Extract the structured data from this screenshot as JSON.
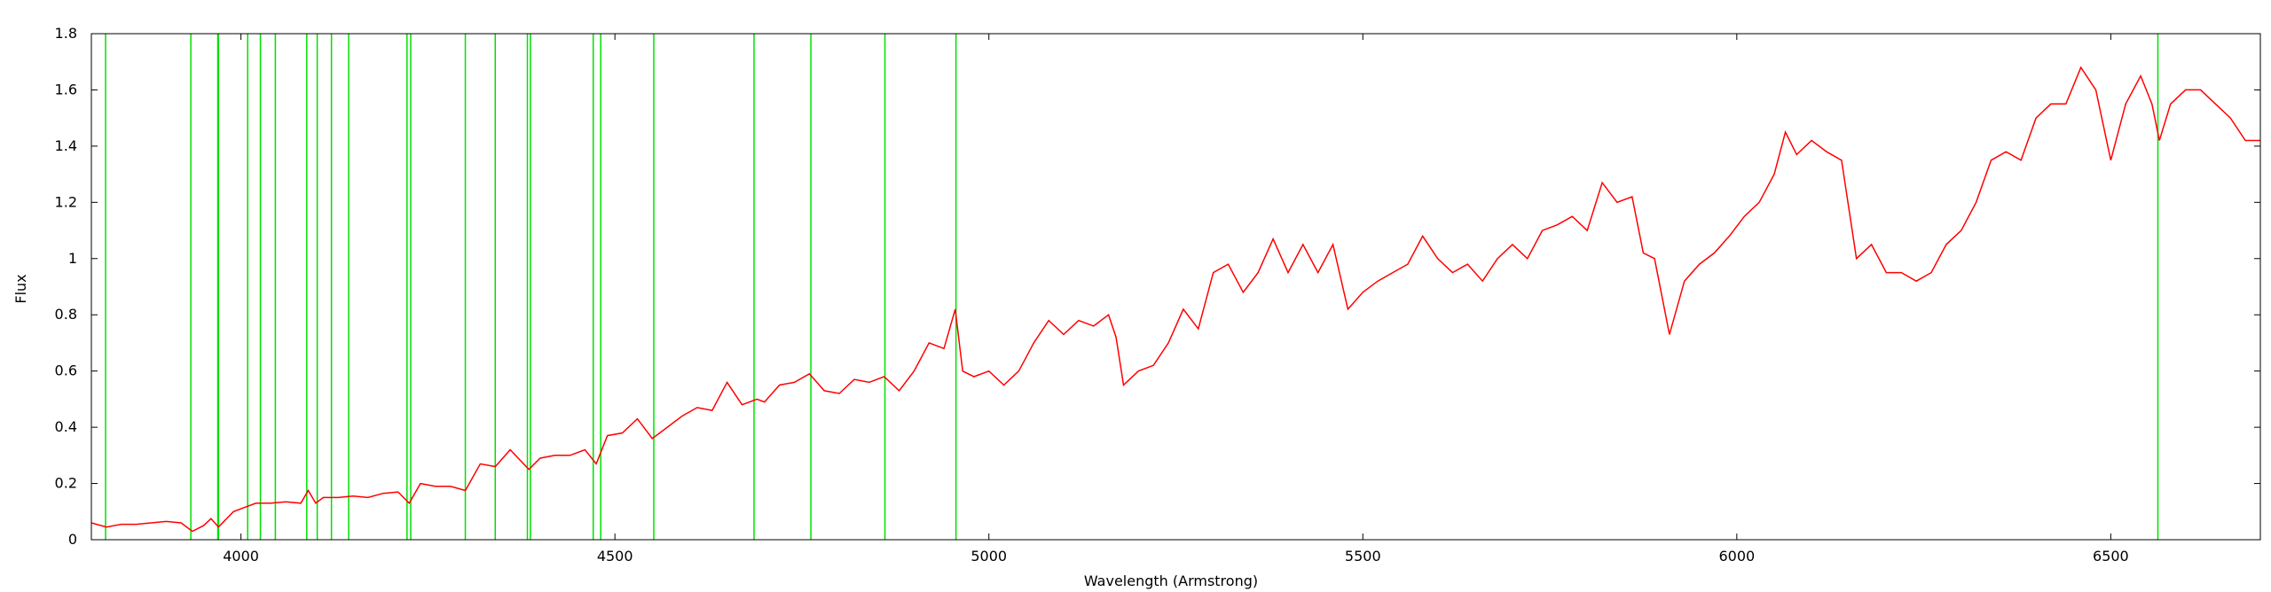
{
  "chart_data": {
    "type": "line",
    "xlabel": "Wavelength (Armstrong)",
    "ylabel": "Flux",
    "xlim": [
      3800,
      6700
    ],
    "ylim": [
      0,
      1.8
    ],
    "grid": false,
    "x_ticks": [
      4000,
      4500,
      5000,
      5500,
      6000,
      6500
    ],
    "y_ticks": [
      0,
      0.2,
      0.4,
      0.6,
      0.8,
      1,
      1.2,
      1.4,
      1.6,
      1.8
    ],
    "x_tick_labels": [
      "4000",
      "4500",
      "5000",
      "5500",
      "6000",
      "6500"
    ],
    "y_tick_labels": [
      "0",
      "0.2",
      "0.4",
      "0.6",
      "0.8",
      "1",
      "1.2",
      "1.4",
      "1.6",
      "1.8"
    ],
    "line_markers": {
      "color": "#00e000",
      "positions": [
        3819,
        3933,
        3969,
        3970,
        4009,
        4026,
        4046,
        4088,
        4102,
        4121,
        4144,
        4222,
        4227,
        4300,
        4340,
        4383,
        4387,
        4471,
        4481,
        4552,
        4686,
        4762,
        4861,
        4956,
        6563
      ]
    },
    "series": [
      {
        "color": "#ff0000",
        "x": [
          3800,
          3820,
          3840,
          3860,
          3880,
          3900,
          3920,
          3935,
          3950,
          3960,
          3970,
          3990,
          4000,
          4020,
          4040,
          4060,
          4080,
          4090,
          4100,
          4110,
          4130,
          4150,
          4170,
          4190,
          4210,
          4225,
          4240,
          4260,
          4280,
          4300,
          4320,
          4340,
          4360,
          4385,
          4400,
          4420,
          4440,
          4460,
          4475,
          4490,
          4510,
          4530,
          4550,
          4570,
          4590,
          4610,
          4630,
          4650,
          4670,
          4690,
          4700,
          4720,
          4740,
          4760,
          4780,
          4800,
          4820,
          4840,
          4860,
          4880,
          4900,
          4920,
          4940,
          4955,
          4965,
          4980,
          5000,
          5020,
          5040,
          5050,
          5060,
          5080,
          5100,
          5120,
          5140,
          5160,
          5170,
          5180,
          5200,
          5220,
          5240,
          5260,
          5280,
          5300,
          5320,
          5340,
          5360,
          5380,
          5400,
          5420,
          5440,
          5460,
          5480,
          5500,
          5520,
          5540,
          5560,
          5580,
          5600,
          5620,
          5640,
          5660,
          5680,
          5700,
          5720,
          5740,
          5760,
          5780,
          5800,
          5820,
          5840,
          5860,
          5875,
          5890,
          5910,
          5930,
          5950,
          5970,
          5990,
          6010,
          6030,
          6050,
          6065,
          6080,
          6100,
          6120,
          6140,
          6160,
          6180,
          6200,
          6220,
          6240,
          6260,
          6280,
          6300,
          6320,
          6340,
          6360,
          6380,
          6400,
          6420,
          6440,
          6460,
          6480,
          6500,
          6520,
          6540,
          6555,
          6565,
          6580,
          6600,
          6620,
          6640,
          6660,
          6680,
          6700
        ],
        "y": [
          0.06,
          0.045,
          0.055,
          0.055,
          0.06,
          0.065,
          0.06,
          0.03,
          0.05,
          0.075,
          0.045,
          0.1,
          0.11,
          0.13,
          0.13,
          0.135,
          0.13,
          0.175,
          0.13,
          0.15,
          0.15,
          0.155,
          0.15,
          0.165,
          0.17,
          0.13,
          0.2,
          0.19,
          0.19,
          0.175,
          0.27,
          0.26,
          0.32,
          0.25,
          0.29,
          0.3,
          0.3,
          0.32,
          0.27,
          0.37,
          0.38,
          0.43,
          0.36,
          0.4,
          0.44,
          0.47,
          0.46,
          0.56,
          0.48,
          0.5,
          0.49,
          0.55,
          0.56,
          0.59,
          0.53,
          0.52,
          0.57,
          0.56,
          0.58,
          0.53,
          0.6,
          0.7,
          0.68,
          0.82,
          0.6,
          0.58,
          0.6,
          0.55,
          0.6,
          0.65,
          0.7,
          0.78,
          0.73,
          0.78,
          0.76,
          0.8,
          0.72,
          0.55,
          0.6,
          0.62,
          0.7,
          0.82,
          0.75,
          0.95,
          0.98,
          0.88,
          0.95,
          1.07,
          0.95,
          1.05,
          0.95,
          1.05,
          0.82,
          0.88,
          0.92,
          0.95,
          0.98,
          1.08,
          1.0,
          0.95,
          0.98,
          0.92,
          1.0,
          1.05,
          1.0,
          1.1,
          1.12,
          1.15,
          1.1,
          1.27,
          1.2,
          1.22,
          1.02,
          1.0,
          0.73,
          0.92,
          0.98,
          1.02,
          1.08,
          1.15,
          1.2,
          1.3,
          1.45,
          1.37,
          1.42,
          1.38,
          1.35,
          1.0,
          1.05,
          0.95,
          0.95,
          0.92,
          0.95,
          1.05,
          1.1,
          1.2,
          1.35,
          1.38,
          1.35,
          1.5,
          1.55,
          1.55,
          1.68,
          1.6,
          1.35,
          1.55,
          1.65,
          1.55,
          1.42,
          1.55,
          1.6,
          1.6,
          1.55,
          1.5,
          1.42,
          1.42
        ]
      }
    ]
  }
}
